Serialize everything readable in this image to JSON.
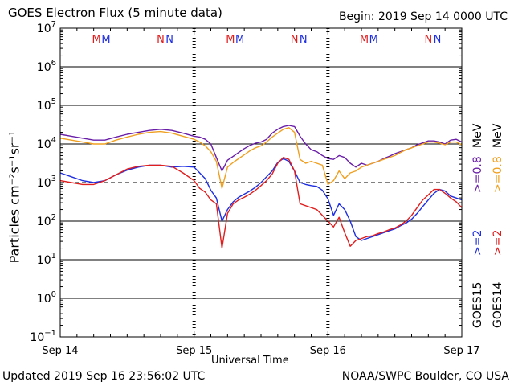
{
  "header": {
    "title": "GOES Electron Flux (5 minute data)",
    "begin": "Begin: 2019 Sep 14 0000 UTC"
  },
  "footer": {
    "updated": "Updated 2019 Sep 16 23:56:02 UTC",
    "credit": "NOAA/SWPC Boulder, CO USA"
  },
  "colors": {
    "goes15_2mev": "#1e2ee0",
    "goes14_2mev": "#e01e1e",
    "goes15_08mev": "#6a1ea8",
    "goes14_08mev": "#f0a020"
  },
  "right_labels": {
    "goes15": "GOES15",
    "goes14": "GOES14",
    "e2_15": ">=2",
    "e2_14": ">=2",
    "e08_15": ">=0.8",
    "e08_14": ">=0.8",
    "mev_2": "MeV",
    "mev_08": "MeV"
  },
  "chart_data": {
    "type": "line",
    "title": "GOES Electron Flux (5 minute data)",
    "xlabel": "Universal Time",
    "ylabel": "Particles cm⁻²s⁻¹sr⁻¹",
    "x_unit": "hours since 2019 Sep 14 0000 UTC",
    "xlim": [
      0,
      72
    ],
    "ylim_log10": [
      -1,
      7
    ],
    "y_scale": "log",
    "x_ticks": [
      {
        "x": 0,
        "label": "Sep 14"
      },
      {
        "x": 24,
        "label": "Sep 15"
      },
      {
        "x": 48,
        "label": "Sep 16"
      },
      {
        "x": 72,
        "label": "Sep 17"
      }
    ],
    "y_ticks": [
      {
        "exp": "-1"
      },
      {
        "exp": "0"
      },
      {
        "exp": "1"
      },
      {
        "exp": "2"
      },
      {
        "exp": "3"
      },
      {
        "exp": "4"
      },
      {
        "exp": "5"
      },
      {
        "exp": "6"
      },
      {
        "exp": "7"
      }
    ],
    "y_tick_base": "10",
    "threshold_log10": 3,
    "grid": "horizontal solid lines at each decade, dashed line at 10^3",
    "markers": [
      {
        "label": "M",
        "x": 6.5,
        "color": "#e01e1e"
      },
      {
        "label": "M",
        "x": 8.2,
        "color": "#1e2ee0"
      },
      {
        "label": "N",
        "x": 18.0,
        "color": "#e01e1e"
      },
      {
        "label": "N",
        "x": 19.6,
        "color": "#1e2ee0"
      },
      {
        "label": "M",
        "x": 30.5,
        "color": "#e01e1e"
      },
      {
        "label": "M",
        "x": 32.2,
        "color": "#1e2ee0"
      },
      {
        "label": "N",
        "x": 42.0,
        "color": "#e01e1e"
      },
      {
        "label": "N",
        "x": 43.6,
        "color": "#1e2ee0"
      },
      {
        "label": "M",
        "x": 54.5,
        "color": "#e01e1e"
      },
      {
        "label": "M",
        "x": 56.2,
        "color": "#1e2ee0"
      },
      {
        "label": "N",
        "x": 66.0,
        "color": "#e01e1e"
      },
      {
        "label": "N",
        "x": 67.6,
        "color": "#1e2ee0"
      }
    ],
    "series": [
      {
        "key": "goes15_08",
        "color": "#6a1ea8",
        "x": [
          0,
          2,
          4,
          6,
          8,
          10,
          12,
          14,
          16,
          18,
          20,
          22,
          24,
          25,
          26,
          27,
          28,
          29,
          30,
          31,
          32,
          33,
          34,
          35,
          36,
          37,
          38,
          39,
          40,
          41,
          42,
          43,
          44,
          45,
          46,
          47,
          48,
          49,
          50,
          51,
          52,
          53,
          54,
          55,
          56,
          57,
          58,
          59,
          60,
          61,
          62,
          63,
          64,
          65,
          66,
          67,
          68,
          69,
          70,
          71,
          72
        ],
        "y": [
          4.25,
          4.2,
          4.15,
          4.1,
          4.1,
          4.18,
          4.25,
          4.3,
          4.35,
          4.38,
          4.35,
          4.28,
          4.2,
          4.18,
          4.12,
          4.0,
          3.65,
          3.3,
          3.58,
          3.68,
          3.78,
          3.88,
          3.96,
          4.02,
          4.05,
          4.12,
          4.28,
          4.38,
          4.45,
          4.48,
          4.45,
          4.2,
          4.0,
          3.85,
          3.8,
          3.7,
          3.62,
          3.6,
          3.7,
          3.65,
          3.5,
          3.4,
          3.5,
          3.45,
          3.5,
          3.55,
          3.62,
          3.68,
          3.75,
          3.8,
          3.85,
          3.9,
          3.98,
          4.03,
          4.08,
          4.08,
          4.05,
          4.0,
          4.1,
          4.12,
          4.05
        ]
      },
      {
        "key": "goes14_08",
        "color": "#f0a020",
        "x": [
          0,
          2,
          4,
          6,
          8,
          10,
          12,
          14,
          16,
          18,
          20,
          22,
          24,
          25,
          26,
          27,
          28,
          29,
          30,
          31,
          32,
          33,
          34,
          35,
          36,
          37,
          38,
          39,
          40,
          41,
          42,
          43,
          44,
          45,
          46,
          47,
          48,
          49,
          50,
          51,
          52,
          53,
          54,
          55,
          56,
          57,
          58,
          59,
          60,
          61,
          62,
          63,
          64,
          65,
          66,
          67,
          68,
          69,
          70,
          71,
          72
        ],
        "y": [
          4.15,
          4.1,
          4.05,
          4.0,
          4.0,
          4.1,
          4.18,
          4.25,
          4.3,
          4.32,
          4.28,
          4.2,
          4.12,
          4.05,
          3.95,
          3.8,
          3.55,
          2.85,
          3.4,
          3.52,
          3.62,
          3.72,
          3.82,
          3.9,
          3.95,
          4.05,
          4.18,
          4.28,
          4.38,
          4.42,
          4.3,
          3.6,
          3.5,
          3.55,
          3.5,
          3.45,
          2.95,
          3.05,
          3.3,
          3.1,
          3.25,
          3.3,
          3.4,
          3.45,
          3.5,
          3.55,
          3.6,
          3.65,
          3.7,
          3.78,
          3.85,
          3.9,
          3.95,
          4.0,
          4.05,
          4.05,
          4.02,
          3.98,
          4.05,
          4.05,
          3.98
        ]
      },
      {
        "key": "goes15_2",
        "color": "#1e2ee0",
        "x": [
          0,
          2,
          4,
          6,
          8,
          10,
          12,
          14,
          16,
          18,
          20,
          22,
          24,
          25,
          26,
          27,
          28,
          29,
          30,
          31,
          32,
          33,
          34,
          35,
          36,
          37,
          38,
          39,
          40,
          41,
          42,
          43,
          44,
          45,
          46,
          47,
          48,
          49,
          50,
          51,
          52,
          53,
          54,
          55,
          56,
          57,
          58,
          59,
          60,
          61,
          62,
          63,
          64,
          65,
          66,
          67,
          68,
          69,
          70,
          71,
          72
        ],
        "y": [
          3.25,
          3.15,
          3.05,
          3.0,
          3.05,
          3.2,
          3.32,
          3.4,
          3.45,
          3.45,
          3.4,
          3.42,
          3.4,
          3.25,
          3.1,
          2.8,
          2.6,
          2.0,
          2.3,
          2.5,
          2.62,
          2.7,
          2.78,
          2.88,
          3.0,
          3.15,
          3.3,
          3.52,
          3.62,
          3.55,
          3.3,
          3.0,
          2.95,
          2.92,
          2.9,
          2.8,
          2.58,
          2.15,
          2.45,
          2.3,
          2.0,
          1.6,
          1.5,
          1.55,
          1.6,
          1.65,
          1.7,
          1.75,
          1.8,
          1.88,
          1.95,
          2.05,
          2.2,
          2.38,
          2.55,
          2.72,
          2.82,
          2.78,
          2.65,
          2.6,
          2.55
        ]
      },
      {
        "key": "goes14_2",
        "color": "#e01e1e",
        "x": [
          0,
          2,
          4,
          6,
          8,
          10,
          12,
          14,
          16,
          18,
          20,
          22,
          24,
          25,
          26,
          27,
          28,
          29,
          30,
          31,
          32,
          33,
          34,
          35,
          36,
          37,
          38,
          39,
          40,
          41,
          42,
          43,
          44,
          45,
          46,
          47,
          48,
          49,
          50,
          51,
          52,
          53,
          54,
          55,
          56,
          57,
          58,
          59,
          60,
          61,
          62,
          63,
          64,
          65,
          66,
          67,
          68,
          69,
          70,
          71,
          72
        ],
        "y": [
          3.05,
          3.0,
          2.95,
          2.95,
          3.05,
          3.2,
          3.35,
          3.42,
          3.45,
          3.45,
          3.42,
          3.25,
          3.05,
          2.85,
          2.75,
          2.55,
          2.45,
          1.3,
          2.2,
          2.45,
          2.55,
          2.62,
          2.7,
          2.8,
          2.92,
          3.05,
          3.22,
          3.5,
          3.65,
          3.6,
          3.3,
          2.45,
          2.4,
          2.35,
          2.3,
          2.15,
          2.0,
          1.85,
          2.1,
          1.7,
          1.35,
          1.5,
          1.55,
          1.6,
          1.62,
          1.68,
          1.72,
          1.78,
          1.82,
          1.9,
          2.0,
          2.15,
          2.35,
          2.55,
          2.68,
          2.82,
          2.82,
          2.72,
          2.6,
          2.5,
          2.35
        ]
      }
    ]
  }
}
